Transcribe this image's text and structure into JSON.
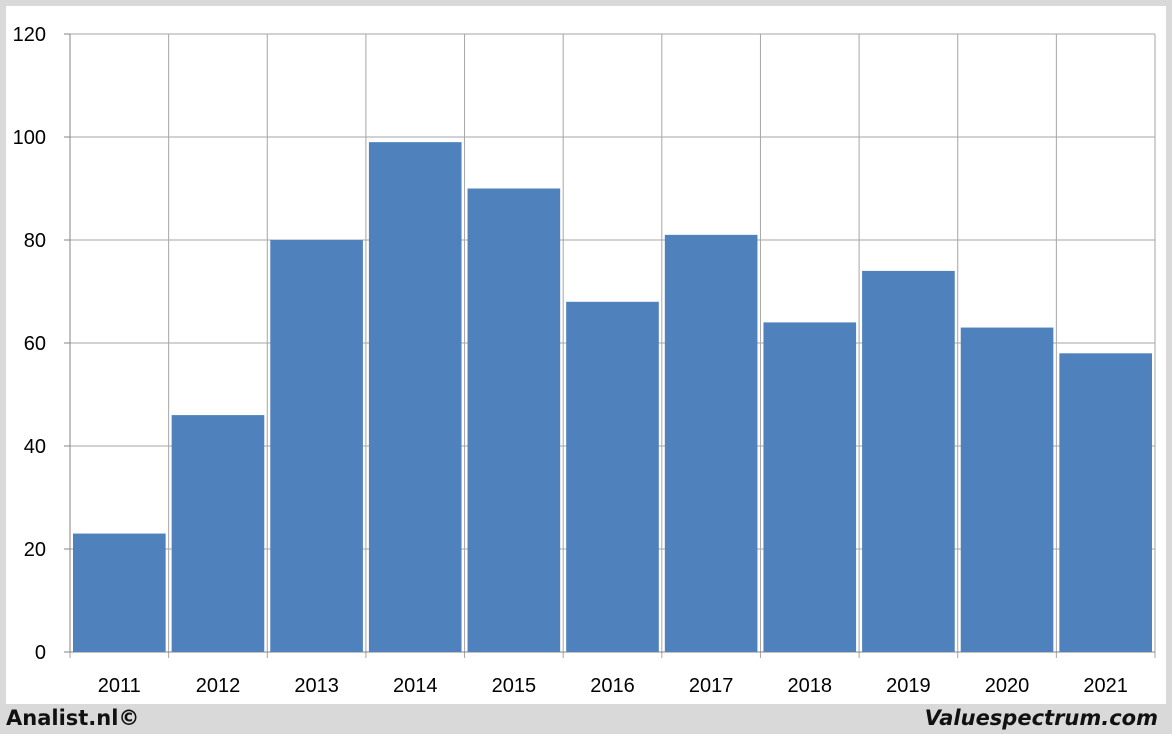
{
  "chart_data": {
    "type": "bar",
    "categories": [
      "2011",
      "2012",
      "2013",
      "2014",
      "2015",
      "2016",
      "2017",
      "2018",
      "2019",
      "2020",
      "2021"
    ],
    "values": [
      23,
      46,
      80,
      99,
      90,
      68,
      81,
      64,
      74,
      63,
      58
    ],
    "title": "",
    "xlabel": "",
    "ylabel": "",
    "ylim": [
      0,
      120
    ],
    "yticks": [
      "0",
      "20",
      "40",
      "60",
      "80",
      "100",
      "120"
    ],
    "grid": true,
    "legend": "none",
    "bar_color": "#4f81bd"
  },
  "footer": {
    "left": "Analist.nl©",
    "right": "Valuespectrum.com"
  }
}
